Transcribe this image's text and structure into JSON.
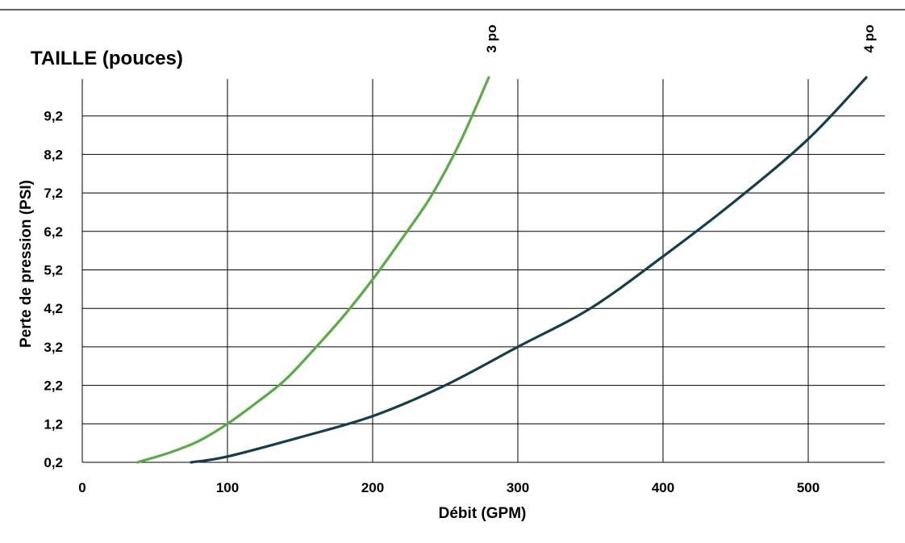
{
  "chart_data": {
    "type": "line",
    "title": "TAILLE (pouces)",
    "xlabel": "Débit (GPM)",
    "ylabel": "Perte de pression (PSI)",
    "xlim": [
      0,
      550
    ],
    "ylim": [
      0.2,
      10.2
    ],
    "x_ticks": [
      "0",
      "100",
      "200",
      "300",
      "400",
      "500"
    ],
    "x_tick_values": [
      0,
      100,
      200,
      300,
      400,
      500
    ],
    "y_ticks": [
      "0,2",
      "1,2",
      "2,2",
      "3,2",
      "4,2",
      "5,2",
      "6,2",
      "7,2",
      "8,2",
      "9,2"
    ],
    "y_tick_values": [
      0.2,
      1.2,
      2.2,
      3.2,
      4.2,
      5.2,
      6.2,
      7.2,
      8.2,
      9.2
    ],
    "grid": true,
    "series": [
      {
        "name": "3 po",
        "color": "#5aaa46",
        "x": [
          38,
          60,
          80,
          100,
          120,
          140,
          160,
          180,
          200,
          220,
          240,
          260,
          280
        ],
        "y": [
          0.2,
          0.45,
          0.75,
          1.2,
          1.75,
          2.35,
          3.15,
          4.0,
          4.95,
          6.0,
          7.1,
          8.5,
          10.2
        ]
      },
      {
        "name": "4 po",
        "color": "#163d4c",
        "x": [
          75,
          100,
          150,
          200,
          250,
          300,
          350,
          400,
          450,
          500,
          540
        ],
        "y": [
          0.2,
          0.35,
          0.85,
          1.4,
          2.2,
          3.2,
          4.2,
          5.55,
          7.0,
          8.6,
          10.2
        ]
      }
    ]
  }
}
